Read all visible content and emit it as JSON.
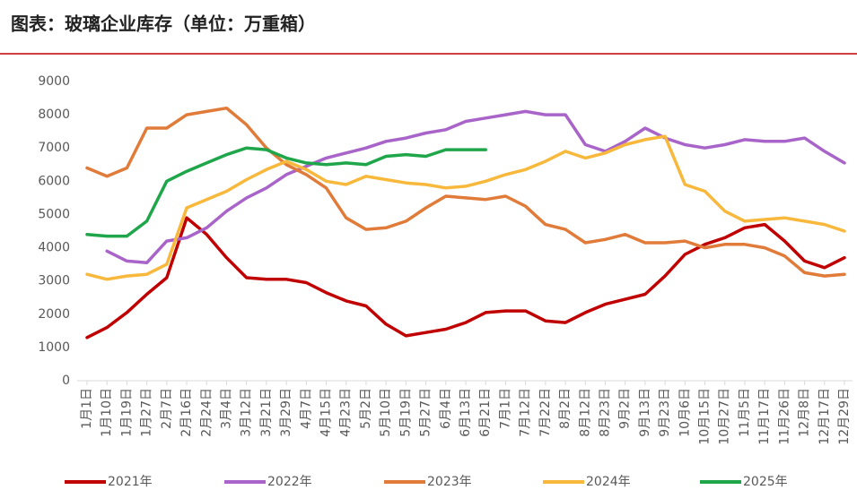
{
  "chart_data": {
    "type": "line",
    "title": "图表：玻璃企业库存（单位：万重箱）",
    "categories": [
      "1月1日",
      "1月10日",
      "1月19日",
      "1月27日",
      "2月7日",
      "2月16日",
      "2月24日",
      "3月4日",
      "3月12日",
      "3月21日",
      "3月29日",
      "4月7日",
      "4月15日",
      "4月23日",
      "5月2日",
      "5月10日",
      "5月19日",
      "5月27日",
      "6月4日",
      "6月13日",
      "6月21日",
      "7月1日",
      "7月12日",
      "7月22日",
      "8月2日",
      "8月12日",
      "8月23日",
      "9月2日",
      "9月13日",
      "9月23日",
      "10月6日",
      "10月15日",
      "10月27日",
      "11月5日",
      "11月17日",
      "11月26日",
      "12月8日",
      "12月17日",
      "12月29日"
    ],
    "ylim": [
      0,
      9000
    ],
    "yticks": [
      0,
      1000,
      2000,
      3000,
      4000,
      5000,
      6000,
      7000,
      8000,
      9000
    ],
    "series": [
      {
        "name": "2021年",
        "color": "#c00000",
        "values": [
          1300,
          1600,
          2050,
          2600,
          3100,
          4900,
          4400,
          3700,
          3100,
          3050,
          3050,
          2950,
          2650,
          2400,
          2250,
          1700,
          1350,
          1450,
          1550,
          1750,
          2050,
          2100,
          2100,
          1800,
          1750,
          2050,
          2300,
          2450,
          2600,
          3150,
          3800,
          4100,
          4300,
          4600,
          4700,
          4200,
          3600,
          3400,
          3700
        ]
      },
      {
        "name": "2022年",
        "color": "#a864c8",
        "values": [
          null,
          3900,
          3600,
          3550,
          4200,
          4300,
          4600,
          5100,
          5500,
          5800,
          6200,
          6450,
          6700,
          6850,
          7000,
          7200,
          7300,
          7450,
          7550,
          7800,
          7900,
          8000,
          8100,
          8000,
          8000,
          7100,
          6900,
          7200,
          7600,
          7300,
          7100,
          7000,
          7100,
          7250,
          7200,
          7200,
          7300,
          6900,
          6550
        ]
      },
      {
        "name": "2023年",
        "color": "#e07b39",
        "values": [
          6400,
          6150,
          6400,
          7600,
          7600,
          8000,
          8100,
          8200,
          7700,
          7000,
          6500,
          6200,
          5800,
          4900,
          4550,
          4600,
          4800,
          5200,
          5550,
          5500,
          5450,
          5550,
          5250,
          4700,
          4550,
          4150,
          4250,
          4400,
          4150,
          4150,
          4200,
          4000,
          4100,
          4100,
          4000,
          3750,
          3250,
          3150,
          3200
        ]
      },
      {
        "name": "2024年",
        "color": "#f8b83c",
        "values": [
          3200,
          3050,
          3150,
          3200,
          3500,
          5200,
          5450,
          5700,
          6050,
          6350,
          6600,
          6350,
          6000,
          5900,
          6150,
          6050,
          5950,
          5900,
          5800,
          5850,
          6000,
          6200,
          6350,
          6600,
          6900,
          6700,
          6850,
          7100,
          7250,
          7350,
          5900,
          5700,
          5100,
          4800,
          4850,
          4900,
          4800,
          4700,
          4500
        ]
      },
      {
        "name": "2025年",
        "color": "#1fa64a",
        "values": [
          4400,
          4350,
          4350,
          4800,
          6000,
          6300,
          6550,
          6800,
          7000,
          6950,
          6700,
          6550,
          6500,
          6550,
          6500,
          6750,
          6800,
          6750,
          6950,
          6950,
          6950,
          null,
          null,
          null,
          null,
          null,
          null,
          null,
          null,
          null,
          null,
          null,
          null,
          null,
          null,
          null,
          null,
          null,
          null
        ]
      }
    ]
  }
}
